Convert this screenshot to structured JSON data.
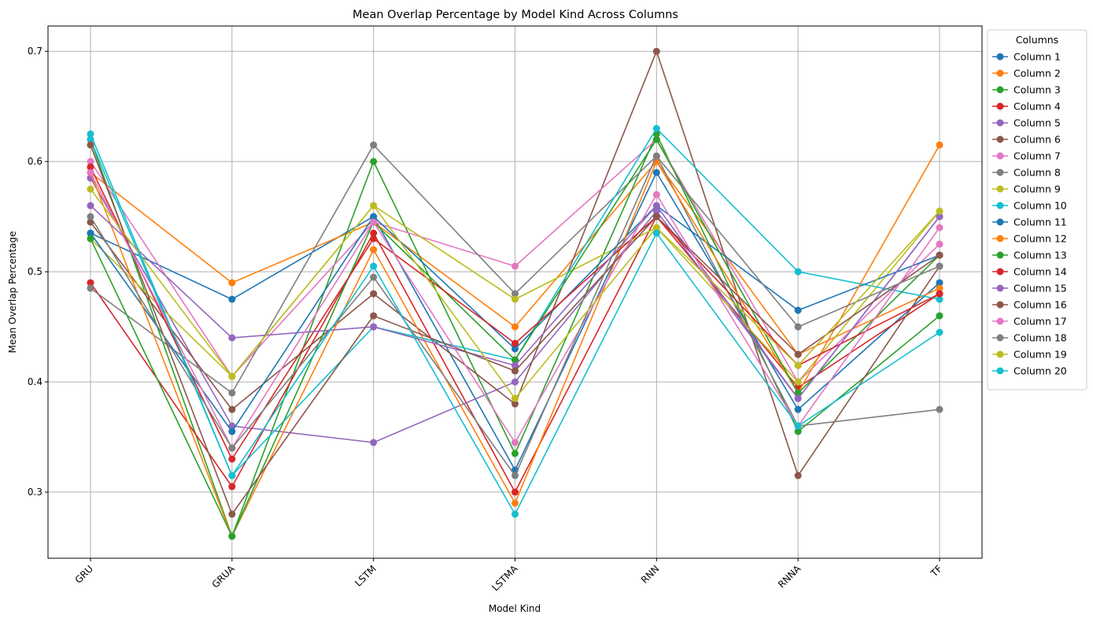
{
  "chart_data": {
    "type": "line",
    "title": "Mean Overlap Percentage by Model Kind Across Columns",
    "xlabel": "Model Kind",
    "ylabel": "Mean Overlap Percentage",
    "categories": [
      "GRU",
      "GRUA",
      "LSTM",
      "LSTMA",
      "RNN",
      "RNNA",
      "TF"
    ],
    "ylim": [
      0.24,
      0.723
    ],
    "yticks": [
      "0.3",
      "0.4",
      "0.5",
      "0.6",
      "0.7"
    ],
    "grid": true,
    "legend": {
      "title": "Columns",
      "placement": "outside-top-right"
    },
    "series": [
      {
        "name": "Column 1",
        "color": "#1f77b4",
        "values": [
          0.535,
          0.475,
          0.55,
          0.32,
          0.59,
          0.375,
          0.49
        ]
      },
      {
        "name": "Column 2",
        "color": "#ff7f0e",
        "values": [
          0.59,
          0.49,
          0.545,
          0.45,
          0.6,
          0.425,
          0.485
        ]
      },
      {
        "name": "Column 3",
        "color": "#2ca02c",
        "values": [
          0.62,
          0.26,
          0.6,
          0.335,
          0.625,
          0.355,
          0.46
        ]
      },
      {
        "name": "Column 4",
        "color": "#d62728",
        "values": [
          0.49,
          0.305,
          0.535,
          0.3,
          0.55,
          0.395,
          0.48
        ]
      },
      {
        "name": "Column 5",
        "color": "#9467bd",
        "values": [
          0.585,
          0.36,
          0.345,
          0.4,
          0.555,
          0.385,
          0.55
        ]
      },
      {
        "name": "Column 6",
        "color": "#8c564b",
        "values": [
          0.545,
          0.375,
          0.48,
          0.38,
          0.7,
          0.315,
          0.505
        ]
      },
      {
        "name": "Column 7",
        "color": "#e377c2",
        "values": [
          0.6,
          0.405,
          0.545,
          0.505,
          0.62,
          0.4,
          0.525
        ]
      },
      {
        "name": "Column 8",
        "color": "#7f7f7f",
        "values": [
          0.485,
          0.39,
          0.615,
          0.48,
          0.605,
          0.36,
          0.375
        ]
      },
      {
        "name": "Column 9",
        "color": "#bcbd22",
        "values": [
          0.53,
          0.405,
          0.56,
          0.475,
          0.54,
          0.4,
          0.555
        ]
      },
      {
        "name": "Column 10",
        "color": "#17becf",
        "values": [
          0.62,
          0.315,
          0.45,
          0.42,
          0.63,
          0.5,
          0.475
        ]
      },
      {
        "name": "Column 11",
        "color": "#1f77b4",
        "values": [
          0.535,
          0.355,
          0.55,
          0.43,
          0.56,
          0.465,
          0.515
        ]
      },
      {
        "name": "Column 12",
        "color": "#ff7f0e",
        "values": [
          0.59,
          0.26,
          0.52,
          0.29,
          0.6,
          0.39,
          0.615
        ]
      },
      {
        "name": "Column 13",
        "color": "#2ca02c",
        "values": [
          0.53,
          0.26,
          0.545,
          0.42,
          0.62,
          0.39,
          0.515
        ]
      },
      {
        "name": "Column 14",
        "color": "#d62728",
        "values": [
          0.595,
          0.33,
          0.53,
          0.435,
          0.55,
          0.415,
          0.48
        ]
      },
      {
        "name": "Column 15",
        "color": "#9467bd",
        "values": [
          0.56,
          0.44,
          0.45,
          0.415,
          0.56,
          0.385,
          0.55
        ]
      },
      {
        "name": "Column 16",
        "color": "#8c564b",
        "values": [
          0.615,
          0.28,
          0.46,
          0.41,
          0.55,
          0.425,
          0.515
        ]
      },
      {
        "name": "Column 17",
        "color": "#e377c2",
        "values": [
          0.59,
          0.34,
          0.545,
          0.345,
          0.57,
          0.36,
          0.54
        ]
      },
      {
        "name": "Column 18",
        "color": "#7f7f7f",
        "values": [
          0.55,
          0.34,
          0.495,
          0.315,
          0.605,
          0.45,
          0.505
        ]
      },
      {
        "name": "Column 19",
        "color": "#bcbd22",
        "values": [
          0.575,
          0.405,
          0.56,
          0.385,
          0.54,
          0.415,
          0.555
        ]
      },
      {
        "name": "Column 20",
        "color": "#17becf",
        "values": [
          0.625,
          0.315,
          0.505,
          0.28,
          0.535,
          0.36,
          0.445
        ]
      }
    ]
  }
}
